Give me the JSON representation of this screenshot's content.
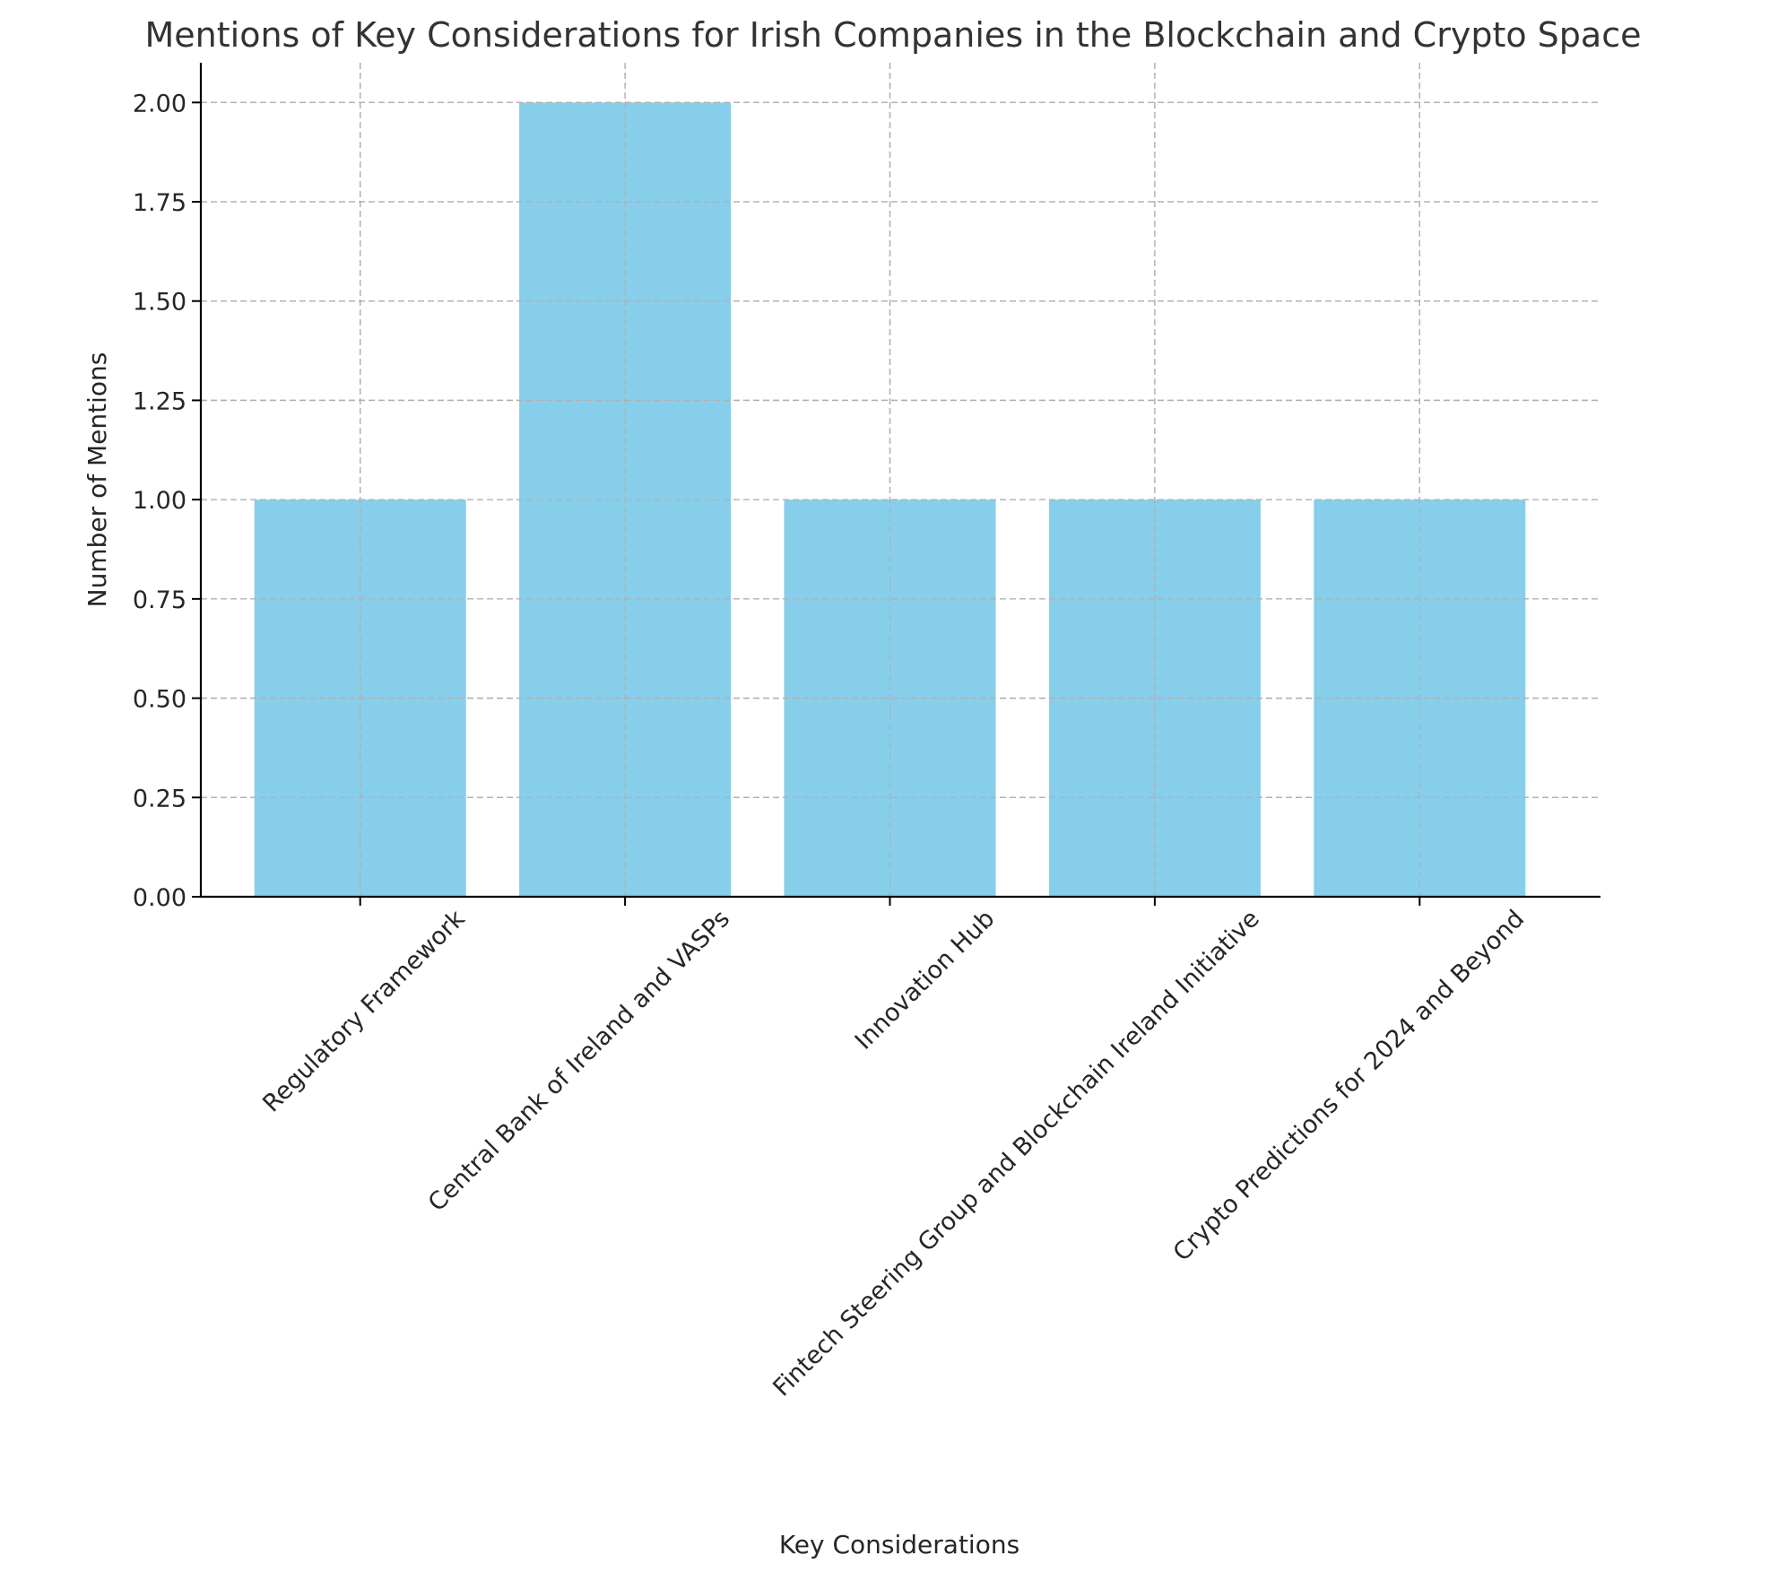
{
  "chart_data": {
    "type": "bar",
    "title": "Mentions of Key Considerations for Irish Companies in the Blockchain and Crypto Space",
    "xlabel": "Key Considerations",
    "ylabel": "Number of Mentions",
    "categories": [
      "Regulatory Framework",
      "Central Bank of Ireland and VASPs",
      "Innovation Hub",
      "Fintech Steering Group and Blockchain Ireland Initiative",
      "Crypto Predictions for 2024 and Beyond"
    ],
    "values": [
      1,
      2,
      1,
      1,
      1
    ],
    "ylim": [
      0,
      2.1
    ],
    "yticks": [
      "0.00",
      "0.25",
      "0.50",
      "0.75",
      "1.00",
      "1.25",
      "1.50",
      "1.75",
      "2.00"
    ],
    "grid": true,
    "bar_color": "#87ceeb",
    "tick_label_rotation": 45
  }
}
